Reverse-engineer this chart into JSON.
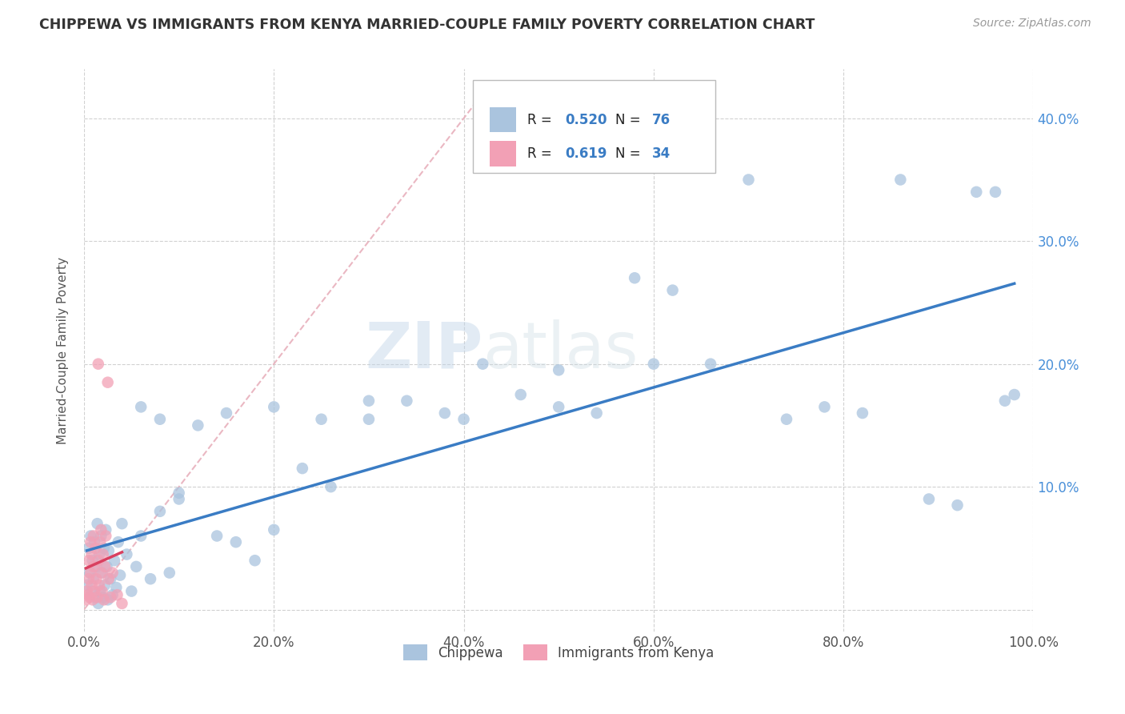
{
  "title": "CHIPPEWA VS IMMIGRANTS FROM KENYA MARRIED-COUPLE FAMILY POVERTY CORRELATION CHART",
  "source": "Source: ZipAtlas.com",
  "ylabel": "Married-Couple Family Poverty",
  "xlim": [
    0.0,
    1.0
  ],
  "ylim": [
    -0.018,
    0.44
  ],
  "xtick_labels": [
    "0.0%",
    "20.0%",
    "40.0%",
    "60.0%",
    "80.0%",
    "100.0%"
  ],
  "xtick_vals": [
    0.0,
    0.2,
    0.4,
    0.6,
    0.8,
    1.0
  ],
  "ytick_labels": [
    "10.0%",
    "20.0%",
    "30.0%",
    "40.0%"
  ],
  "ytick_vals": [
    0.1,
    0.2,
    0.3,
    0.4
  ],
  "chippewa_color": "#aac4de",
  "kenya_color": "#f2a0b5",
  "trendline_chippewa_color": "#3a7cc4",
  "trendline_kenya_color": "#d94060",
  "diagonal_color": "#e8b0bc",
  "watermark_color": "#c5d8ea",
  "legend_R1": "R = 0.520",
  "legend_N1": "N = 76",
  "legend_R2": "R = 0.619",
  "legend_N2": "N = 34",
  "chippewa_x": [
    0.003,
    0.005,
    0.006,
    0.007,
    0.008,
    0.009,
    0.01,
    0.011,
    0.012,
    0.013,
    0.014,
    0.015,
    0.016,
    0.017,
    0.018,
    0.019,
    0.02,
    0.021,
    0.022,
    0.023,
    0.024,
    0.025,
    0.026,
    0.028,
    0.03,
    0.032,
    0.034,
    0.036,
    0.038,
    0.04,
    0.045,
    0.05,
    0.055,
    0.06,
    0.07,
    0.08,
    0.09,
    0.1,
    0.12,
    0.14,
    0.16,
    0.18,
    0.2,
    0.23,
    0.26,
    0.3,
    0.34,
    0.38,
    0.42,
    0.46,
    0.5,
    0.54,
    0.58,
    0.62,
    0.66,
    0.7,
    0.74,
    0.78,
    0.82,
    0.86,
    0.89,
    0.92,
    0.94,
    0.96,
    0.97,
    0.98,
    0.06,
    0.08,
    0.1,
    0.15,
    0.2,
    0.25,
    0.3,
    0.4,
    0.5,
    0.6
  ],
  "chippewa_y": [
    0.02,
    0.05,
    0.03,
    0.06,
    0.015,
    0.04,
    0.025,
    0.055,
    0.01,
    0.035,
    0.07,
    0.005,
    0.045,
    0.015,
    0.06,
    0.03,
    0.01,
    0.05,
    0.02,
    0.065,
    0.035,
    0.008,
    0.048,
    0.025,
    0.012,
    0.04,
    0.018,
    0.055,
    0.028,
    0.07,
    0.045,
    0.015,
    0.035,
    0.06,
    0.025,
    0.08,
    0.03,
    0.09,
    0.15,
    0.06,
    0.055,
    0.04,
    0.065,
    0.115,
    0.1,
    0.155,
    0.17,
    0.16,
    0.2,
    0.175,
    0.195,
    0.16,
    0.27,
    0.26,
    0.2,
    0.35,
    0.155,
    0.165,
    0.16,
    0.35,
    0.09,
    0.085,
    0.34,
    0.34,
    0.17,
    0.175,
    0.165,
    0.155,
    0.095,
    0.16,
    0.165,
    0.155,
    0.17,
    0.155,
    0.165,
    0.2
  ],
  "kenya_x": [
    0.002,
    0.003,
    0.004,
    0.005,
    0.005,
    0.006,
    0.007,
    0.007,
    0.008,
    0.008,
    0.009,
    0.01,
    0.01,
    0.011,
    0.012,
    0.013,
    0.014,
    0.015,
    0.015,
    0.016,
    0.017,
    0.018,
    0.018,
    0.019,
    0.02,
    0.021,
    0.022,
    0.023,
    0.025,
    0.026,
    0.028,
    0.03,
    0.035,
    0.04
  ],
  "kenya_y": [
    0.008,
    0.015,
    0.012,
    0.025,
    0.04,
    0.01,
    0.03,
    0.055,
    0.02,
    0.045,
    0.008,
    0.035,
    0.06,
    0.015,
    0.05,
    0.025,
    0.01,
    0.04,
    0.2,
    0.02,
    0.055,
    0.03,
    0.065,
    0.015,
    0.045,
    0.008,
    0.035,
    0.06,
    0.185,
    0.025,
    0.01,
    0.03,
    0.012,
    0.005
  ]
}
